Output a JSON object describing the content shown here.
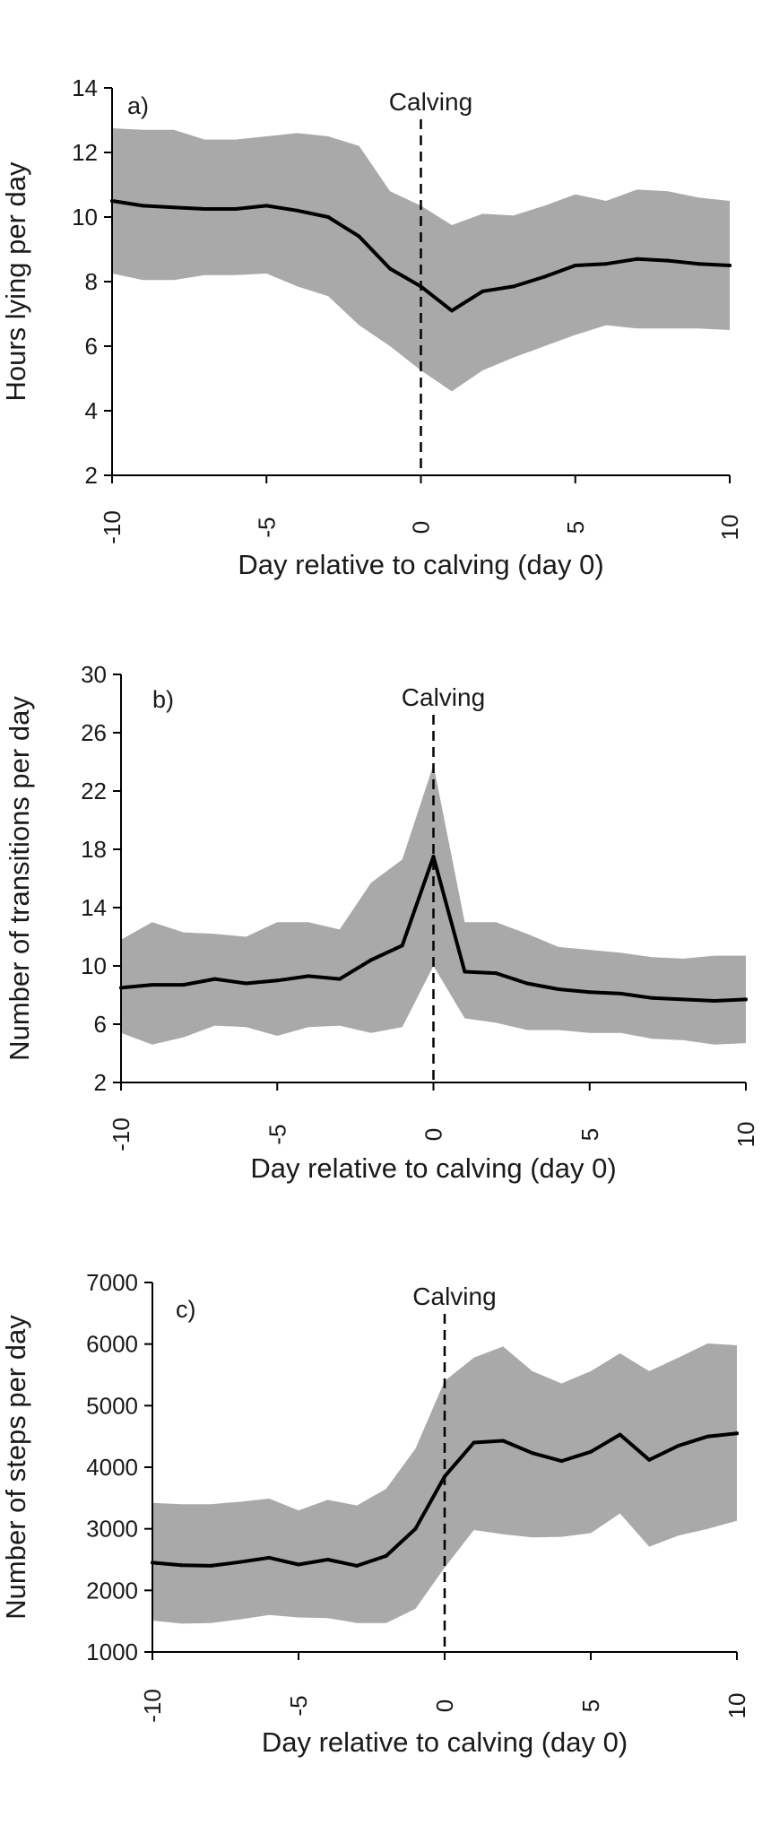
{
  "chart_data": [
    {
      "type": "line",
      "panel_label": "a)",
      "xlabel": "Day relative to calving (day 0)",
      "ylabel": "Hours lying per day",
      "annotation": "Calving",
      "annotation_x": 0,
      "xlim": [
        -10,
        10
      ],
      "ylim": [
        2,
        14
      ],
      "xticks": [
        -10,
        -5,
        0,
        5,
        10
      ],
      "yticks": [
        2,
        4,
        6,
        8,
        10,
        12,
        14
      ],
      "grid": false,
      "band_color": "#a9a9a9",
      "line_color": "#000000",
      "x": [
        -10,
        -9,
        -8,
        -7,
        -6,
        -5,
        -4,
        -3,
        -2,
        -1,
        0,
        1,
        2,
        3,
        4,
        5,
        6,
        7,
        8,
        9,
        10
      ],
      "series": [
        {
          "values": [
            10.5,
            10.35,
            10.3,
            10.25,
            10.25,
            10.35,
            10.2,
            10.0,
            9.4,
            8.4,
            7.85,
            7.1,
            7.7,
            7.85,
            8.15,
            8.5,
            8.55,
            8.7,
            8.65,
            8.55,
            8.5
          ]
        }
      ],
      "band_upper": [
        12.75,
        12.7,
        12.7,
        12.4,
        12.4,
        12.5,
        12.6,
        12.5,
        12.2,
        10.8,
        10.35,
        9.75,
        10.1,
        10.05,
        10.35,
        10.7,
        10.5,
        10.85,
        10.8,
        10.6,
        10.5
      ],
      "band_lower": [
        8.25,
        8.05,
        8.05,
        8.2,
        8.2,
        8.25,
        7.85,
        7.55,
        6.65,
        6.0,
        5.25,
        4.6,
        5.25,
        5.65,
        6.0,
        6.35,
        6.65,
        6.55,
        6.55,
        6.55,
        6.5
      ]
    },
    {
      "type": "line",
      "panel_label": "b)",
      "xlabel": "Day relative to calving (day 0)",
      "ylabel": "Number of transitions per day",
      "annotation": "Calving",
      "annotation_x": 0,
      "xlim": [
        -10,
        10
      ],
      "ylim": [
        2,
        30
      ],
      "xticks": [
        -10,
        -5,
        0,
        5,
        10
      ],
      "yticks": [
        2,
        6,
        10,
        14,
        18,
        22,
        26,
        30
      ],
      "grid": false,
      "band_color": "#a9a9a9",
      "line_color": "#000000",
      "x": [
        -10,
        -9,
        -8,
        -7,
        -6,
        -5,
        -4,
        -3,
        -2,
        -1,
        0,
        1,
        2,
        3,
        4,
        5,
        6,
        7,
        8,
        9,
        10
      ],
      "series": [
        {
          "values": [
            8.5,
            8.7,
            8.7,
            9.1,
            8.8,
            9.0,
            9.3,
            9.1,
            10.4,
            11.4,
            17.5,
            9.6,
            9.5,
            8.8,
            8.4,
            8.2,
            8.1,
            7.8,
            7.7,
            7.6,
            7.7
          ]
        }
      ],
      "band_upper": [
        11.8,
        13.0,
        12.3,
        12.2,
        12.0,
        13.0,
        13.0,
        12.5,
        15.7,
        17.3,
        23.8,
        13.0,
        13.0,
        12.2,
        11.3,
        11.1,
        10.9,
        10.6,
        10.5,
        10.7,
        10.7
      ],
      "band_lower": [
        5.4,
        4.6,
        5.1,
        5.9,
        5.8,
        5.2,
        5.8,
        5.9,
        5.4,
        5.8,
        10.0,
        6.4,
        6.1,
        5.6,
        5.6,
        5.4,
        5.4,
        5.0,
        4.9,
        4.6,
        4.7
      ]
    },
    {
      "type": "line",
      "panel_label": "c)",
      "xlabel": "Day relative to calving (day 0)",
      "ylabel": "Number of steps per day",
      "annotation": "Calving",
      "annotation_x": 0,
      "xlim": [
        -10,
        10
      ],
      "ylim": [
        1000,
        7000
      ],
      "xticks": [
        -10,
        -5,
        0,
        5,
        10
      ],
      "yticks": [
        1000,
        2000,
        3000,
        4000,
        5000,
        6000,
        7000
      ],
      "grid": false,
      "band_color": "#a9a9a9",
      "line_color": "#000000",
      "x": [
        -10,
        -9,
        -8,
        -7,
        -6,
        -5,
        -4,
        -3,
        -2,
        -1,
        0,
        1,
        2,
        3,
        4,
        5,
        6,
        7,
        8,
        9,
        10
      ],
      "series": [
        {
          "values": [
            2450,
            2410,
            2400,
            2460,
            2530,
            2420,
            2500,
            2400,
            2560,
            3000,
            3850,
            4400,
            4430,
            4230,
            4100,
            4250,
            4530,
            4120,
            4350,
            4500,
            4550
          ]
        }
      ],
      "band_upper": [
        3420,
        3400,
        3400,
        3440,
        3490,
        3300,
        3470,
        3380,
        3650,
        4300,
        5400,
        5780,
        5960,
        5560,
        5360,
        5560,
        5850,
        5560,
        5780,
        6010,
        5980
      ],
      "band_lower": [
        1510,
        1460,
        1470,
        1530,
        1600,
        1560,
        1550,
        1470,
        1470,
        1700,
        2370,
        2980,
        2910,
        2860,
        2870,
        2930,
        3250,
        2710,
        2890,
        3000,
        3130
      ]
    }
  ]
}
